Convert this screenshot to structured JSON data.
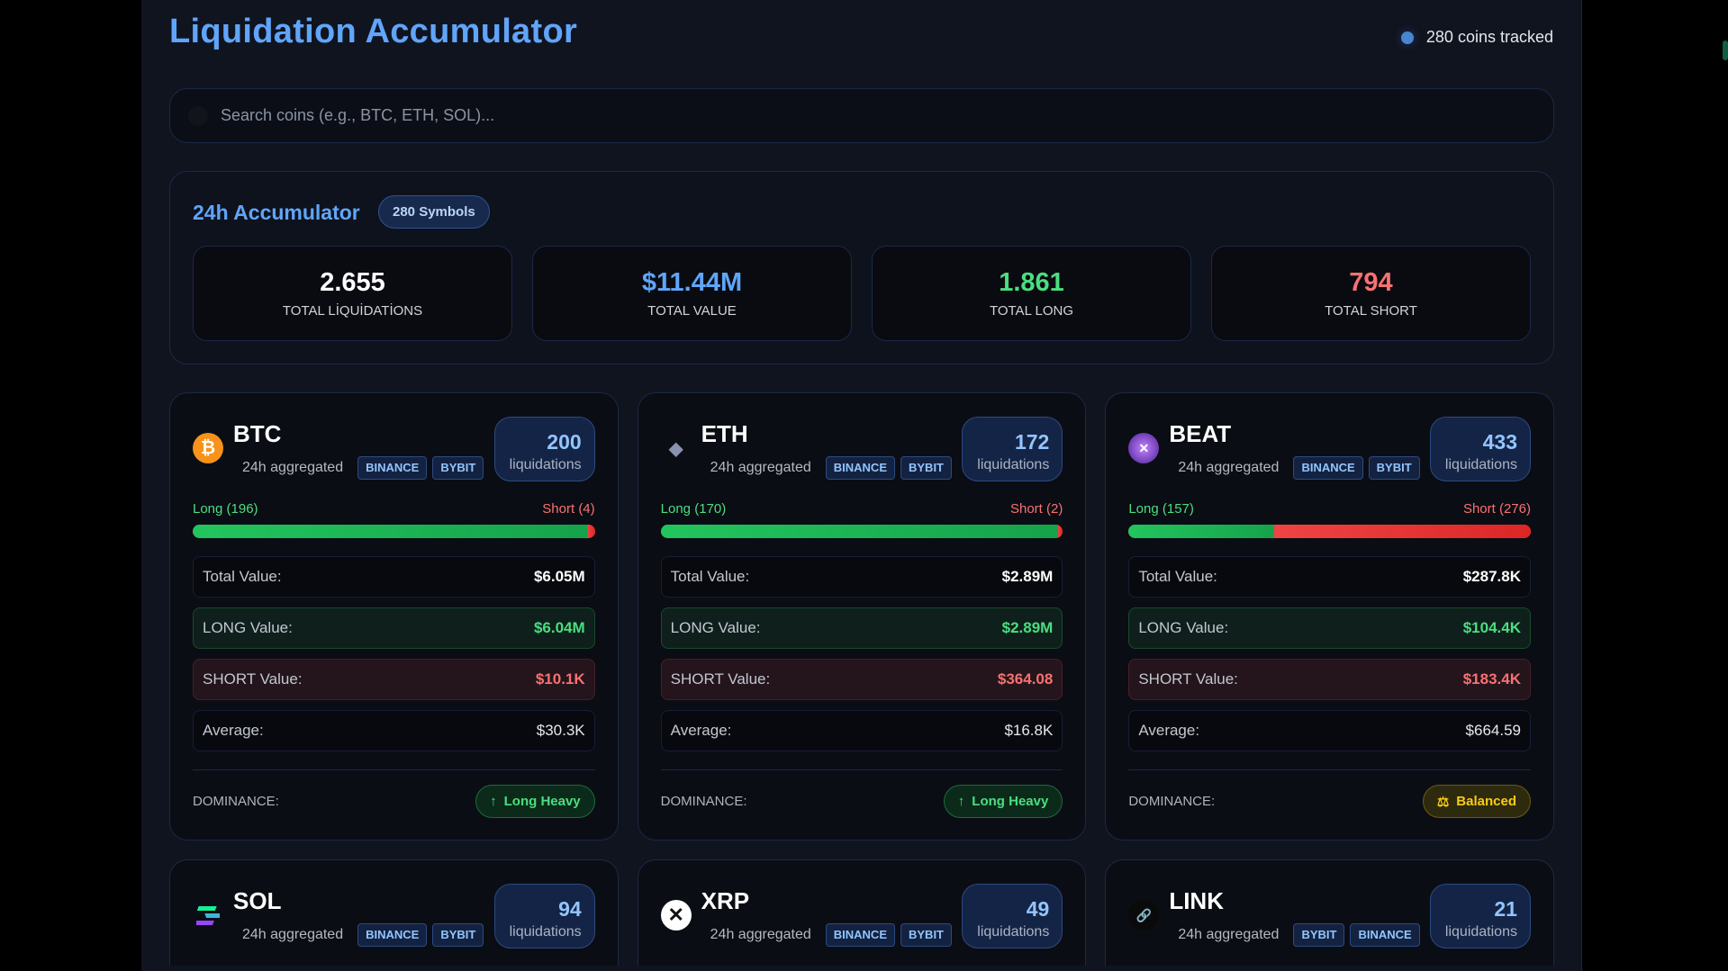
{
  "header": {
    "title": "Liquidation Accumulator",
    "tracked": "280 coins tracked"
  },
  "search": {
    "placeholder": "Search coins (e.g., BTC, ETH, SOL)..."
  },
  "accumulator": {
    "title": "24h Accumulator",
    "badge": "280 Symbols",
    "stats": [
      {
        "value": "2.655",
        "label": "TOTAL LİQUİDATİONS",
        "color": "#ffffff"
      },
      {
        "value": "$11.44M",
        "label": "TOTAL VALUE",
        "color": "#60a5fa"
      },
      {
        "value": "1.861",
        "label": "TOTAL LONG",
        "color": "#4ade80"
      },
      {
        "value": "794",
        "label": "TOTAL SHORT",
        "color": "#f87171"
      }
    ]
  },
  "labels": {
    "agg": "24h aggregated",
    "liq": "liquidations",
    "total": "Total Value:",
    "long": "LONG Value:",
    "short": "SHORT Value:",
    "avg": "Average:",
    "dominance": "DOMINANCE:"
  },
  "coins": [
    {
      "symbol": "BTC",
      "icon": "bitcoin-icon",
      "exchanges": [
        "BINANCE",
        "BYBIT"
      ],
      "count": "200",
      "long_label": "Long (196)",
      "short_label": "Short (4)",
      "long_pct": 98,
      "total": "$6.05M",
      "long": "$6.04M",
      "short": "$10.1K",
      "avg": "$30.3K",
      "dominance": "Long Heavy",
      "dom_icon": "arrow-up-icon"
    },
    {
      "symbol": "ETH",
      "icon": "ethereum-icon",
      "exchanges": [
        "BINANCE",
        "BYBIT"
      ],
      "count": "172",
      "long_label": "Long (170)",
      "short_label": "Short (2)",
      "long_pct": 98.8,
      "total": "$2.89M",
      "long": "$2.89M",
      "short": "$364.08",
      "avg": "$16.8K",
      "dominance": "Long Heavy",
      "dom_icon": "arrow-up-icon"
    },
    {
      "symbol": "BEAT",
      "icon": "beat-logo-icon",
      "exchanges": [
        "BINANCE",
        "BYBIT"
      ],
      "count": "433",
      "long_label": "Long (157)",
      "short_label": "Short (276)",
      "long_pct": 36.3,
      "total": "$287.8K",
      "long": "$104.4K",
      "short": "$183.4K",
      "avg": "$664.59",
      "dominance": "Balanced",
      "dom_icon": "scale-icon"
    },
    {
      "symbol": "SOL",
      "icon": "solana-icon",
      "exchanges": [
        "BINANCE",
        "BYBIT"
      ],
      "count": "94"
    },
    {
      "symbol": "XRP",
      "icon": "xrp-icon",
      "exchanges": [
        "BINANCE",
        "BYBIT"
      ],
      "count": "49"
    },
    {
      "symbol": "LINK",
      "icon": "chainlink-icon",
      "exchanges": [
        "BYBIT",
        "BINANCE"
      ],
      "count": "21"
    }
  ]
}
